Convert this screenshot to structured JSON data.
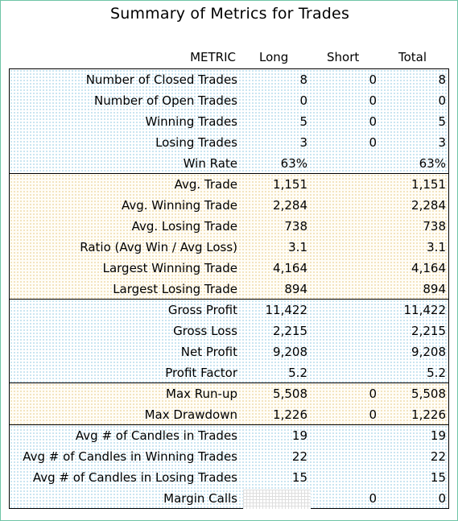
{
  "title": "Summary of Metrics for Trades",
  "headers": {
    "metric": "METRIC",
    "long": "Long",
    "short": "Short",
    "total": "Total"
  },
  "sections": [
    {
      "style": "blue",
      "rows": [
        {
          "label": "Number of Closed Trades",
          "long": "8",
          "short": "0",
          "total": "8"
        },
        {
          "label": "Number of Open Trades",
          "long": "0",
          "short": "0",
          "total": "0"
        },
        {
          "label": "Winning Trades",
          "long": "5",
          "short": "0",
          "total": "5"
        },
        {
          "label": "Losing Trades",
          "long": "3",
          "short": "0",
          "total": "3"
        },
        {
          "label": "Win Rate",
          "long": "63%",
          "short": "",
          "total": "63%"
        }
      ]
    },
    {
      "style": "yellow",
      "rows": [
        {
          "label": "Avg. Trade",
          "long": "1,151",
          "short": "",
          "total": "1,151"
        },
        {
          "label": "Avg. Winning Trade",
          "long": "2,284",
          "short": "",
          "total": "2,284"
        },
        {
          "label": "Avg. Losing Trade",
          "long": "738",
          "short": "",
          "total": "738"
        },
        {
          "label": "Ratio (Avg Win / Avg Loss)",
          "long": "3.1",
          "short": "",
          "total": "3.1"
        },
        {
          "label": "Largest Winning Trade",
          "long": "4,164",
          "short": "",
          "total": "4,164"
        },
        {
          "label": "Largest Losing Trade",
          "long": "894",
          "short": "",
          "total": "894"
        }
      ]
    },
    {
      "style": "blue",
      "rows": [
        {
          "label": "Gross Profit",
          "long": "11,422",
          "short": "",
          "total": "11,422"
        },
        {
          "label": "Gross Loss",
          "long": "2,215",
          "short": "",
          "total": "2,215"
        },
        {
          "label": "Net Profit",
          "long": "9,208",
          "short": "",
          "total": "9,208"
        },
        {
          "label": "Profit Factor",
          "long": "5.2",
          "short": "",
          "total": "5.2"
        }
      ]
    },
    {
      "style": "yellow",
      "rows": [
        {
          "label": "Max Run-up",
          "long": "5,508",
          "short": "0",
          "total": "5,508"
        },
        {
          "label": "Max Drawdown",
          "long": "1,226",
          "short": "0",
          "total": "1,226"
        }
      ]
    },
    {
      "style": "blue",
      "rows": [
        {
          "label": "Avg # of Candles in Trades",
          "long": "19",
          "short": "",
          "total": "19"
        },
        {
          "label": "Avg # of Candles in Winning Trades",
          "long": "22",
          "short": "",
          "total": "22"
        },
        {
          "label": "Avg # of Candles in Losing Trades",
          "long": "15",
          "short": "",
          "total": "15"
        },
        {
          "label": "Margin Calls",
          "long": "",
          "short": "0",
          "total": "0",
          "long_empty_grid": true
        }
      ]
    }
  ],
  "colors": {
    "frame_border": "#6fc4a6",
    "blue_dots": "#b9dcec",
    "yellow_dots": "#efdcae"
  }
}
